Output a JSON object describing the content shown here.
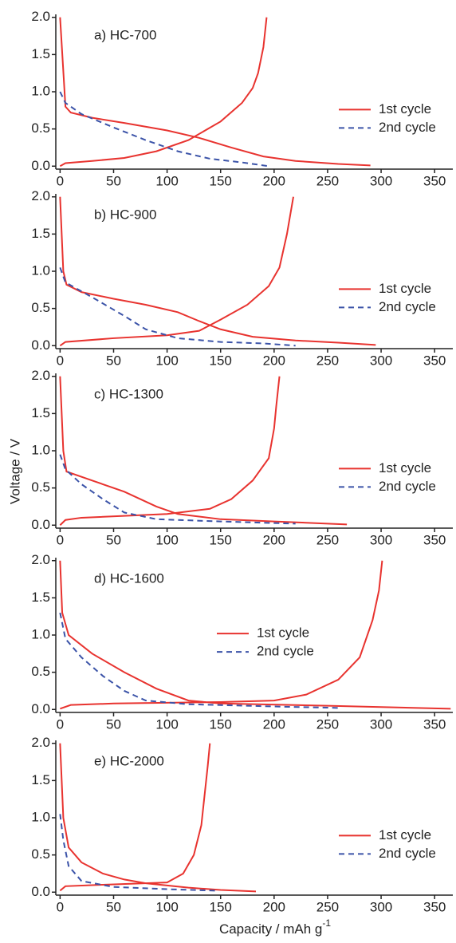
{
  "chart_data": [
    {
      "type": "line",
      "annotation": "a) HC-700",
      "legend_position": "right",
      "xlim": [
        -4,
        367
      ],
      "xticks": [
        0,
        50,
        100,
        150,
        200,
        250,
        300,
        350
      ],
      "ylim": [
        -0.04,
        2.04
      ],
      "yticks": [
        {
          "value": 0,
          "label": "0.0"
        },
        0.5,
        {
          "value": 1,
          "label": "1.0"
        },
        1.5,
        {
          "value": 2,
          "label": "2.0"
        }
      ],
      "series": [
        {
          "name": "1st cycle",
          "color": "#e8332f",
          "dash": false,
          "x": [
            0,
            5,
            10,
            30,
            60,
            100,
            130,
            160,
            190,
            220,
            260,
            290,
            null,
            0,
            5,
            30,
            60,
            90,
            120,
            150,
            170,
            180,
            185,
            190,
            193
          ],
          "values": [
            2.0,
            0.8,
            0.72,
            0.65,
            0.58,
            0.48,
            0.38,
            0.25,
            0.13,
            0.07,
            0.03,
            0.01,
            null,
            0.0,
            0.04,
            0.07,
            0.11,
            0.2,
            0.35,
            0.6,
            0.85,
            1.05,
            1.25,
            1.6,
            2.0
          ]
        },
        {
          "name": "2nd cycle",
          "color": "#3b53a8",
          "dash": true,
          "x": [
            0,
            5,
            20,
            50,
            80,
            110,
            140,
            170,
            195
          ],
          "values": [
            1.0,
            0.85,
            0.7,
            0.52,
            0.35,
            0.2,
            0.1,
            0.05,
            0.0
          ]
        }
      ]
    },
    {
      "type": "line",
      "annotation": "b) HC-900",
      "legend_position": "right",
      "xlim": [
        -4,
        367
      ],
      "xticks": [
        0,
        50,
        100,
        150,
        200,
        250,
        300,
        350
      ],
      "ylim": [
        -0.04,
        2.04
      ],
      "yticks": [
        {
          "value": 0,
          "label": "0.0"
        },
        0.5,
        {
          "value": 1,
          "label": "1.0"
        },
        1.5,
        {
          "value": 2,
          "label": "2.0"
        }
      ],
      "series": [
        {
          "name": "1st cycle",
          "color": "#e8332f",
          "dash": false,
          "x": [
            0,
            3,
            6,
            20,
            50,
            80,
            110,
            130,
            150,
            180,
            220,
            260,
            295,
            null,
            0,
            5,
            50,
            100,
            130,
            150,
            175,
            195,
            205,
            212,
            218
          ],
          "values": [
            2.0,
            1.0,
            0.82,
            0.72,
            0.63,
            0.55,
            0.45,
            0.33,
            0.22,
            0.12,
            0.07,
            0.04,
            0.01,
            null,
            0.0,
            0.05,
            0.1,
            0.14,
            0.2,
            0.35,
            0.55,
            0.8,
            1.05,
            1.5,
            2.0
          ]
        },
        {
          "name": "2nd cycle",
          "color": "#3b53a8",
          "dash": true,
          "x": [
            0,
            5,
            30,
            60,
            80,
            110,
            150,
            190,
            220
          ],
          "values": [
            1.05,
            0.85,
            0.65,
            0.4,
            0.22,
            0.1,
            0.05,
            0.03,
            0.0
          ]
        }
      ]
    },
    {
      "type": "line",
      "annotation": "c) HC-1300",
      "legend_position": "right",
      "y_label": "Voltage / V",
      "xlim": [
        -4,
        367
      ],
      "xticks": [
        0,
        50,
        100,
        150,
        200,
        250,
        300,
        350
      ],
      "ylim": [
        -0.04,
        2.04
      ],
      "yticks": [
        {
          "value": 0,
          "label": "0.0"
        },
        0.5,
        {
          "value": 1,
          "label": "1.0"
        },
        1.5,
        {
          "value": 2,
          "label": "2.0"
        }
      ],
      "series": [
        {
          "name": "1st cycle",
          "color": "#e8332f",
          "dash": false,
          "x": [
            0,
            3,
            6,
            30,
            60,
            90,
            110,
            150,
            200,
            268,
            null,
            0,
            5,
            20,
            100,
            140,
            160,
            180,
            195,
            200,
            202,
            205
          ],
          "values": [
            2.0,
            1.0,
            0.72,
            0.6,
            0.45,
            0.25,
            0.15,
            0.08,
            0.05,
            0.01,
            null,
            0.0,
            0.07,
            0.1,
            0.15,
            0.22,
            0.35,
            0.6,
            0.9,
            1.3,
            1.6,
            2.0
          ]
        },
        {
          "name": "2nd cycle",
          "color": "#3b53a8",
          "dash": true,
          "x": [
            0,
            5,
            20,
            40,
            60,
            90,
            150,
            220
          ],
          "values": [
            0.95,
            0.75,
            0.55,
            0.35,
            0.17,
            0.08,
            0.05,
            0.02
          ]
        }
      ]
    },
    {
      "type": "line",
      "annotation": "d) HC-1600",
      "legend_position": "center",
      "xlim": [
        -4,
        367
      ],
      "xticks": [
        0,
        50,
        100,
        150,
        200,
        250,
        300,
        350
      ],
      "ylim": [
        -0.04,
        2.04
      ],
      "yticks": [
        {
          "value": 0,
          "label": "0.0"
        },
        0.5,
        {
          "value": 1,
          "label": "1.0"
        },
        1.5,
        {
          "value": 2,
          "label": "2.0"
        }
      ],
      "series": [
        {
          "name": "1st cycle",
          "color": "#e8332f",
          "dash": false,
          "x": [
            0,
            2,
            8,
            30,
            60,
            90,
            120,
            150,
            250,
            365,
            null,
            0,
            10,
            50,
            150,
            200,
            230,
            260,
            280,
            292,
            298,
            301
          ],
          "values": [
            2.0,
            1.3,
            1.0,
            0.75,
            0.5,
            0.28,
            0.12,
            0.08,
            0.05,
            0.01,
            null,
            0.01,
            0.06,
            0.08,
            0.1,
            0.12,
            0.2,
            0.4,
            0.7,
            1.2,
            1.6,
            2.0
          ]
        },
        {
          "name": "2nd cycle",
          "color": "#3b53a8",
          "dash": true,
          "x": [
            0,
            5,
            20,
            40,
            60,
            80,
            120,
            200,
            262
          ],
          "values": [
            1.3,
            0.95,
            0.7,
            0.45,
            0.25,
            0.12,
            0.07,
            0.04,
            0.02
          ]
        }
      ]
    },
    {
      "type": "line",
      "annotation": "e) HC-2000",
      "legend_position": "right",
      "x_label": "Capacity / mAh g",
      "x_label_superscript": "-1",
      "xlim": [
        -4,
        367
      ],
      "xticks": [
        0,
        50,
        100,
        150,
        200,
        250,
        300,
        350
      ],
      "ylim": [
        -0.04,
        2.04
      ],
      "yticks": [
        {
          "value": 0,
          "label": "0.0"
        },
        0.5,
        {
          "value": 1,
          "label": "1.0"
        },
        1.5,
        {
          "value": 2,
          "label": "2.0"
        }
      ],
      "series": [
        {
          "name": "1st cycle",
          "color": "#e8332f",
          "dash": false,
          "x": [
            0,
            3,
            8,
            20,
            40,
            60,
            80,
            120,
            150,
            183,
            null,
            0,
            5,
            40,
            100,
            115,
            125,
            132,
            135,
            138,
            140
          ],
          "values": [
            2.0,
            1.0,
            0.6,
            0.4,
            0.25,
            0.17,
            0.12,
            0.06,
            0.03,
            0.01,
            null,
            0.02,
            0.08,
            0.1,
            0.13,
            0.25,
            0.5,
            0.9,
            1.3,
            1.7,
            2.0
          ]
        },
        {
          "name": "2nd cycle",
          "color": "#3b53a8",
          "dash": true,
          "x": [
            0,
            3,
            8,
            20,
            50,
            100,
            145
          ],
          "values": [
            1.05,
            0.7,
            0.35,
            0.15,
            0.07,
            0.04,
            0.02
          ]
        }
      ]
    }
  ]
}
